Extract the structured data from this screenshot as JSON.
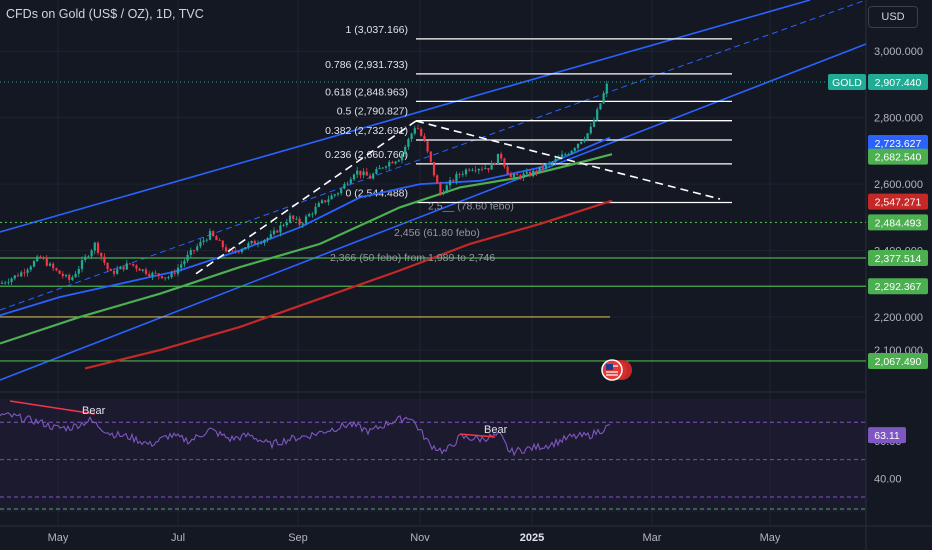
{
  "header": {
    "title": "CFDs on Gold (US$ / OZ), 1D, TVC",
    "currency_button": "USD"
  },
  "chart_data": {
    "type": "line",
    "x_axis": {
      "ticks": [
        "May",
        "Jul",
        "Sep",
        "Nov",
        "2025",
        "Mar",
        "May"
      ]
    },
    "price_axis": {
      "ticks": [
        "3,000.000",
        "2,800.000",
        "2,600.000",
        "2,400.000",
        "2,200.000",
        "2,100.000"
      ],
      "ylim": [
        1980,
        3100
      ]
    },
    "price_badges": [
      {
        "label": "2,907.440",
        "value": 2907.44,
        "color": "#22ab94",
        "tag": "GOLD"
      },
      {
        "label": "2,723.627",
        "value": 2723.63,
        "color": "#2962ff"
      },
      {
        "label": "2,682.540",
        "value": 2682.54,
        "color": "#4caf50"
      },
      {
        "label": "2,547.271",
        "value": 2547.27,
        "color": "#c62828"
      },
      {
        "label": "2,484.493",
        "value": 2484.49,
        "color": "#4caf50"
      },
      {
        "label": "2,377.514",
        "value": 2377.51,
        "color": "#4caf50"
      },
      {
        "label": "2,292.367",
        "value": 2292.37,
        "color": "#4caf50"
      },
      {
        "label": "2,067.490",
        "value": 2067.49,
        "color": "#4caf50"
      }
    ],
    "fib_levels": [
      {
        "label": "1 (3,037.166)",
        "value": 3037.17
      },
      {
        "label": "0.786 (2,931.733)",
        "value": 2931.73
      },
      {
        "label": "0.618 (2,848.963)",
        "value": 2848.96
      },
      {
        "label": "0.5 (2,790.827)",
        "value": 2790.83
      },
      {
        "label": "0.382 (2,732.691)",
        "value": 2732.69
      },
      {
        "label": "0.236 (2,660.760)",
        "value": 2660.76
      },
      {
        "label": "0 (2,544.488)",
        "value": 2544.49
      }
    ],
    "annotations": [
      "2,5__ (78.60 febo)",
      "2,456 (61.80 febo)",
      "2,366  (50 febo)  from 1,989 to 2,746"
    ],
    "horizontal_levels": [
      {
        "value": 2484.49,
        "style": "dotted",
        "color": "#4caf50"
      },
      {
        "value": 2377.51,
        "style": "solid",
        "color": "#4caf50"
      },
      {
        "value": 2292.37,
        "style": "solid",
        "color": "#4caf50"
      },
      {
        "value": 2200,
        "style": "solid",
        "color": "#c9b458"
      },
      {
        "value": 2067.49,
        "style": "solid",
        "color": "#4caf50"
      }
    ],
    "rsi": {
      "value_label": "63.11",
      "ticks": [
        "60.00",
        "40.00"
      ],
      "ylim": [
        22,
        84
      ],
      "bands": [
        70,
        30
      ],
      "divergence_labels": [
        "Bear",
        "Bear"
      ]
    }
  }
}
